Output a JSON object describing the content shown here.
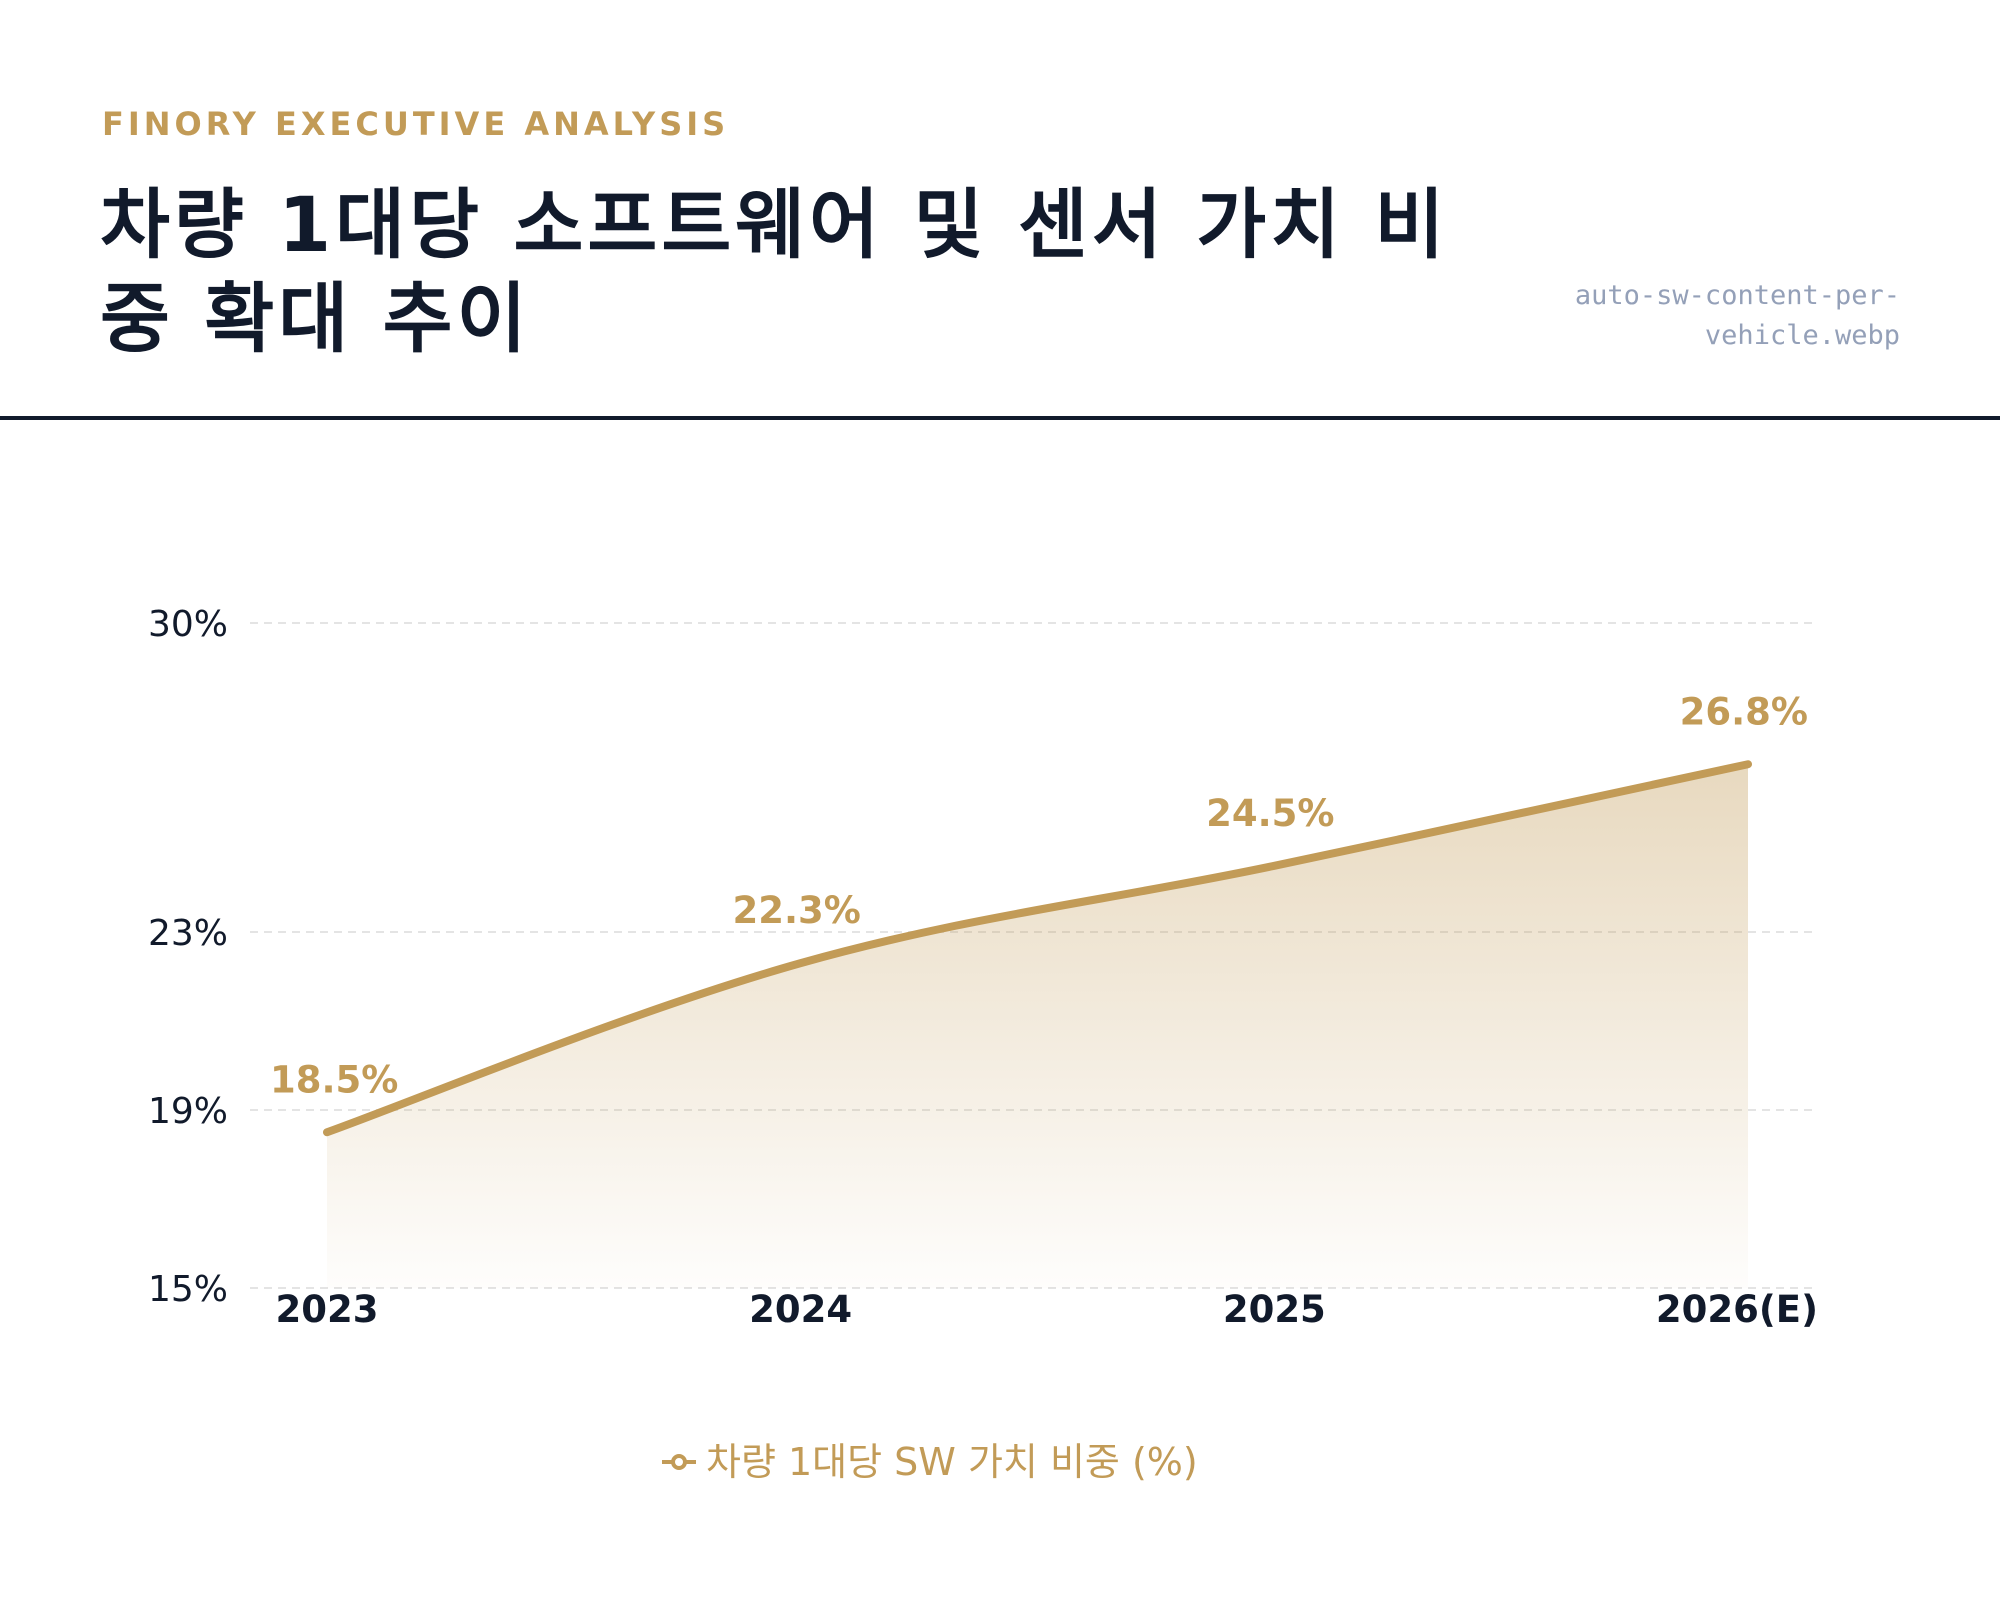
{
  "header": {
    "eyebrow": "FINORY EXECUTIVE ANALYSIS",
    "title": "차량 1대당 소프트웨어 및 센서 가치 비중 확대 추이",
    "filename": "auto-sw-content-per-vehicle.webp"
  },
  "colors": {
    "accent": "#c29b57",
    "title": "#111a2b",
    "filename": "#94a0b8",
    "rule": "#111a2b",
    "grid": "#e4e4e4",
    "axis_label": "#111a2b"
  },
  "legend": {
    "label": "차량 1대당 SW 가치 비중 (%)",
    "marker_icon": "line-dot-legend-icon"
  },
  "chart_data": {
    "type": "area",
    "categories": [
      "2023",
      "2024",
      "2025",
      "2026(E)"
    ],
    "y_ticks": [
      15,
      19,
      23,
      30
    ],
    "y_tick_labels": [
      "15%",
      "19%",
      "23%",
      "30%"
    ],
    "ylim": [
      15,
      30
    ],
    "y_scale": "piecewise",
    "grid": true,
    "legend_position": "bottom",
    "series": [
      {
        "name": "차량 1대당 SW 가치 비중 (%)",
        "values": [
          18.5,
          22.3,
          24.5,
          26.8
        ],
        "data_labels": [
          "18.5%",
          "22.3%",
          "24.5%",
          "26.8%"
        ]
      }
    ],
    "title": "",
    "xlabel": "",
    "ylabel": ""
  }
}
